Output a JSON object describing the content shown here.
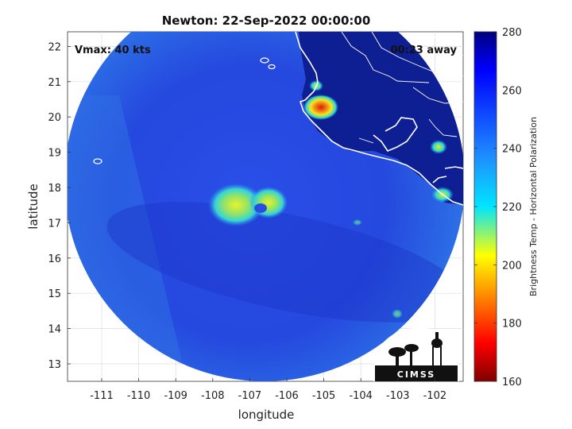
{
  "title": "Newton: 22-Sep-2022 00:00:00",
  "vmax_label": "Vmax: 40 kts",
  "time_away_label": "00:23 away",
  "x_axis": {
    "label": "longitude",
    "ticks": [
      "-111",
      "-110",
      "-109",
      "-108",
      "-107",
      "-106",
      "-105",
      "-104",
      "-103",
      "-102"
    ]
  },
  "y_axis": {
    "label": "latitude",
    "ticks": [
      "13",
      "14",
      "15",
      "16",
      "17",
      "18",
      "19",
      "20",
      "21",
      "22"
    ]
  },
  "colorbar": {
    "label": "Brightness Temp - Horizontal Polarization",
    "ticks": [
      "280",
      "260",
      "240",
      "220",
      "200",
      "180",
      "160"
    ],
    "range": [
      160,
      280
    ],
    "colormap": "jet"
  },
  "logo": {
    "text": "CIMSS"
  },
  "colors": {
    "background_field": "#1f3fd9",
    "swath_edge": "#2f7fe6",
    "land": "#0a1f8c",
    "coastline": "#ffffff",
    "convection_core": "#e33a12",
    "convection_mid": "#f2e21b",
    "convection_low": "#2fd6c8"
  }
}
